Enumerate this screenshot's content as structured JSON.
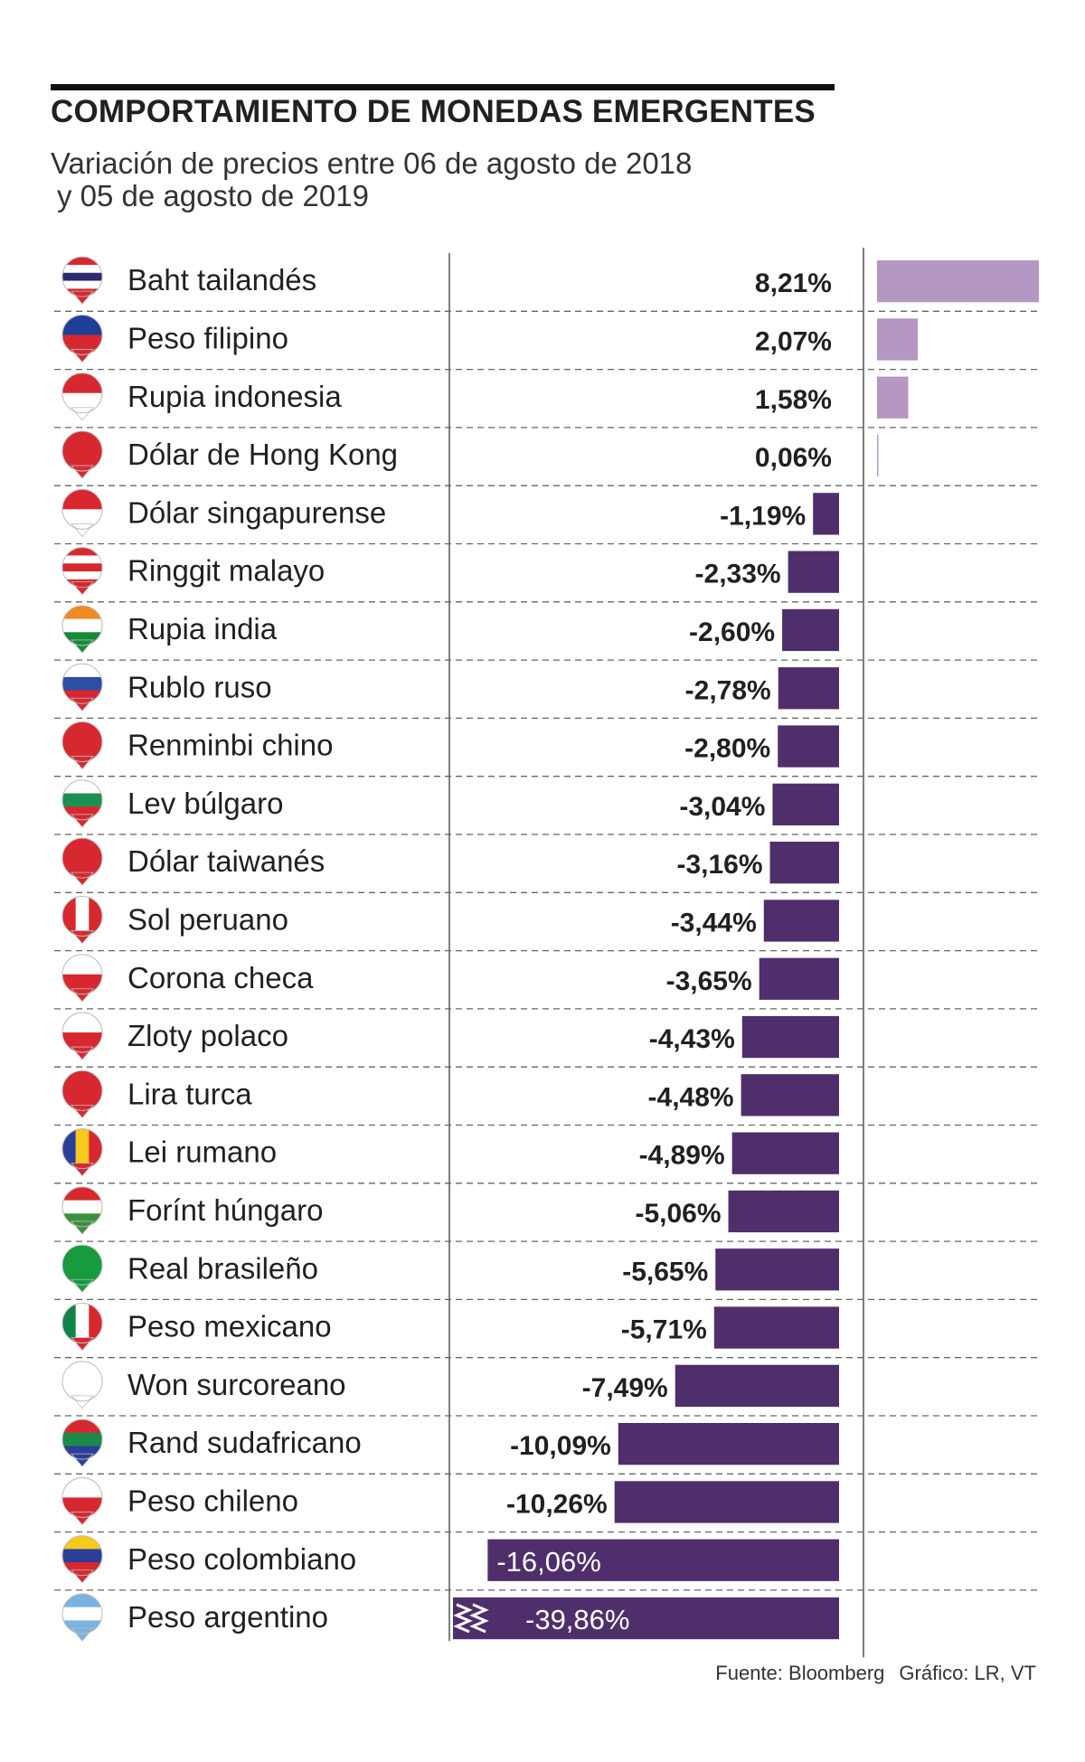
{
  "header": {
    "title": "COMPORTAMIENTO DE MONEDAS EMERGENTES",
    "subtitle_line1": "Variación de precios entre 06 de agosto de 2018",
    "subtitle_line2": "y 05 de agosto de 2019"
  },
  "footer": {
    "source": "Fuente: Bloomberg",
    "credit": "Gráfico: LR, VT"
  },
  "colors": {
    "positive": "#b597c4",
    "negative": "#4f2f6b",
    "text": "#231f20"
  },
  "chart_data": {
    "type": "bar",
    "orientation": "horizontal",
    "title": "COMPORTAMIENTO DE MONEDAS EMERGENTES",
    "subtitle": "Variación de precios entre 06 de agosto de 2018 y 05 de agosto de 2019",
    "unit": "%",
    "categories": [
      "Baht tailandés",
      "Peso filipino",
      "Rupia indonesia",
      "Dólar de Hong Kong",
      "Dólar singapurense",
      "Ringgit malayo",
      "Rupia india",
      "Rublo ruso",
      "Renminbi chino",
      "Lev búlgaro",
      "Dólar taiwanés",
      "Sol peruano",
      "Corona checa",
      "Zloty polaco",
      "Lira turca",
      "Lei rumano",
      "Forínt húngaro",
      "Real brasileño",
      "Peso mexicano",
      "Won surcoreano",
      "Rand sudafricano",
      "Peso chileno",
      "Peso colombiano",
      "Peso argentino"
    ],
    "values": [
      8.21,
      2.07,
      1.58,
      0.06,
      -1.19,
      -2.33,
      -2.6,
      -2.78,
      -2.8,
      -3.04,
      -3.16,
      -3.44,
      -3.65,
      -4.43,
      -4.48,
      -4.89,
      -5.06,
      -5.65,
      -5.71,
      -7.49,
      -10.09,
      -10.26,
      -16.06,
      -39.86
    ],
    "labels": [
      "8,21%",
      "2,07%",
      "1,58%",
      "0,06%",
      "-1,19%",
      "-2,33%",
      "-2,60%",
      "-2,78%",
      "-2,80%",
      "-3,04%",
      "-3,16%",
      "-3,44%",
      "-3,65%",
      "-4,43%",
      "-4,48%",
      "-4,89%",
      "-5,06%",
      "-5,65%",
      "-5,71%",
      "-7,49%",
      "-10,09%",
      "-10,26%",
      "-16,06%",
      "-39,86%"
    ],
    "flags": [
      "thailand-flag",
      "philippines-flag",
      "indonesia-flag",
      "hong-kong-flag",
      "singapore-flag",
      "malaysia-flag",
      "india-flag",
      "russia-flag",
      "china-flag",
      "bulgaria-flag",
      "taiwan-flag",
      "peru-flag",
      "czech-flag",
      "poland-flag",
      "turkey-flag",
      "romania-flag",
      "hungary-flag",
      "brazil-flag",
      "mexico-flag",
      "south-korea-flag",
      "south-africa-flag",
      "chile-flag",
      "colombia-flag",
      "argentina-flag"
    ],
    "axis_break_on": "Peso argentino",
    "xlabel": "",
    "ylabel": ""
  }
}
